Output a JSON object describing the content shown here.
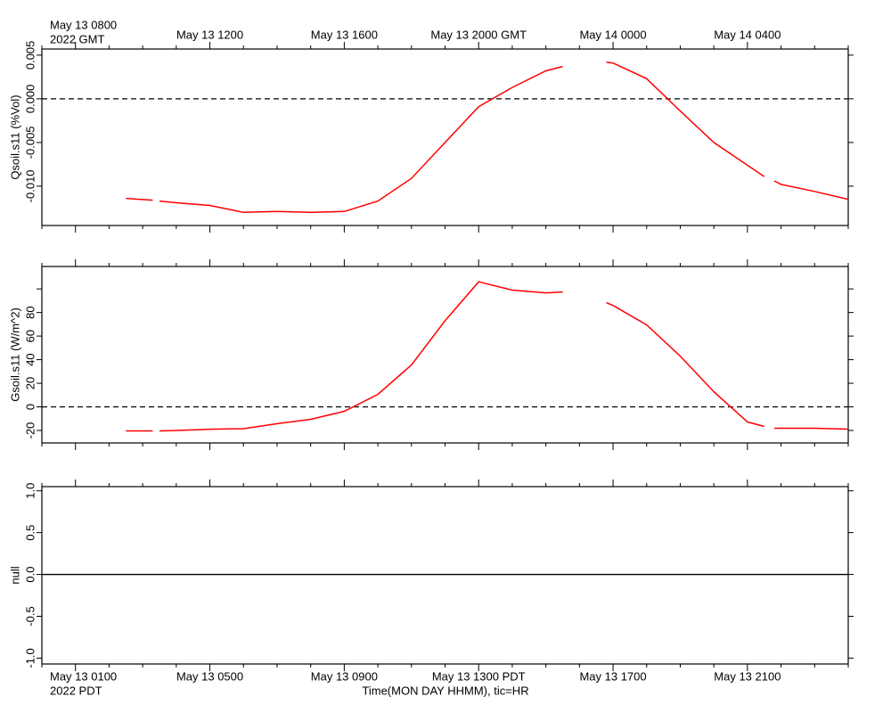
{
  "chart_data": {
    "type": "line",
    "xlim": [
      0,
      24
    ],
    "x": [
      2.5,
      3.3,
      3.4,
      3.5,
      4,
      5,
      6,
      7,
      8,
      9,
      10,
      11,
      12,
      13,
      14,
      15,
      15.5,
      16.2,
      16.8,
      17,
      18,
      19,
      20,
      21,
      21.5,
      21.6,
      21.8,
      22,
      23,
      24
    ],
    "xticks": [
      {
        "value": 1,
        "label": "May 13 0100"
      },
      {
        "value": 5,
        "label": "May 13 0500"
      },
      {
        "value": 9,
        "label": "May 13 0900"
      },
      {
        "value": 13,
        "label": "May 13 1300 PDT"
      },
      {
        "value": 17,
        "label": "May 13 1700"
      },
      {
        "value": 21,
        "label": "May 13 2100"
      }
    ],
    "x2ticks": [
      {
        "value": 1,
        "label": "May 13 0800"
      },
      {
        "value": 5,
        "label": "May 13 1200"
      },
      {
        "value": 9,
        "label": "May 13 1600"
      },
      {
        "value": 13,
        "label": "May 13 2000 GMT"
      },
      {
        "value": 17,
        "label": "May 14 0000"
      },
      {
        "value": 21,
        "label": "May 14 0400"
      }
    ],
    "xminor_ticks": [
      0,
      2,
      3,
      4,
      6,
      7,
      8,
      10,
      11,
      12,
      14,
      15,
      16,
      18,
      19,
      20,
      22,
      23,
      24
    ],
    "x_year_label": "2022 PDT",
    "x2_year_label": "2022 GMT",
    "x_label": "Time(MON DAY HHMM), tic=HR",
    "panels": [
      {
        "ylabel": "Qsoil.s11 (%Vol)",
        "ylim": [
          -0.0145,
          0.0057
        ],
        "zero_line": "dashed",
        "yticks": [
          0.005,
          {
            "value": 0,
            "label": "0.000"
          },
          -0.005,
          {
            "value": -0.01,
            "label": "-0.010"
          }
        ],
        "series": [
          {
            "color": "#ff0000",
            "values": [
              -0.0114,
              -0.0116,
              null,
              -0.0117,
              -0.0119,
              -0.0122,
              -0.013,
              -0.0129,
              -0.013,
              -0.0129,
              -0.0117,
              -0.0091,
              -0.005,
              -0.0009,
              0.0013,
              0.0032,
              0.0037,
              null,
              0.0042,
              0.0041,
              0.0023,
              -0.0014,
              -0.005,
              -0.0076,
              -0.0089,
              null,
              -0.0094,
              -0.0098,
              -0.0106,
              -0.0115
            ]
          }
        ]
      },
      {
        "ylabel": "Gsoil.s11 (W/m^2)",
        "ylim": [
          -30.6,
          119
        ],
        "zero_line": "dashed",
        "yticks": [
          -20,
          0,
          20,
          40,
          60,
          80
        ],
        "yminor_ticks": [
          100
        ],
        "series": [
          {
            "color": "#ff0000",
            "values": [
              -20.4,
              -20.4,
              null,
              -20.4,
              -20,
              -19,
              -18.5,
              -14.3,
              -10.6,
              -3.8,
              10.6,
              35.5,
              73,
              106,
              99,
              96.6,
              97.4,
              null,
              88.3,
              86,
              69.4,
              43,
              12.8,
              -12.8,
              -16.6,
              null,
              -18.1,
              -18.1,
              -18.1,
              -18.9
            ]
          }
        ]
      },
      {
        "ylabel": "null",
        "ylim": [
          -1.07,
          1.05
        ],
        "zero_line": "solid",
        "yticks": [
          {
            "value": 1,
            "label": "1.0"
          },
          0.5,
          {
            "value": 0,
            "label": "0.0"
          },
          -0.5,
          {
            "value": -1,
            "label": "-1.0"
          }
        ],
        "series": []
      }
    ]
  }
}
